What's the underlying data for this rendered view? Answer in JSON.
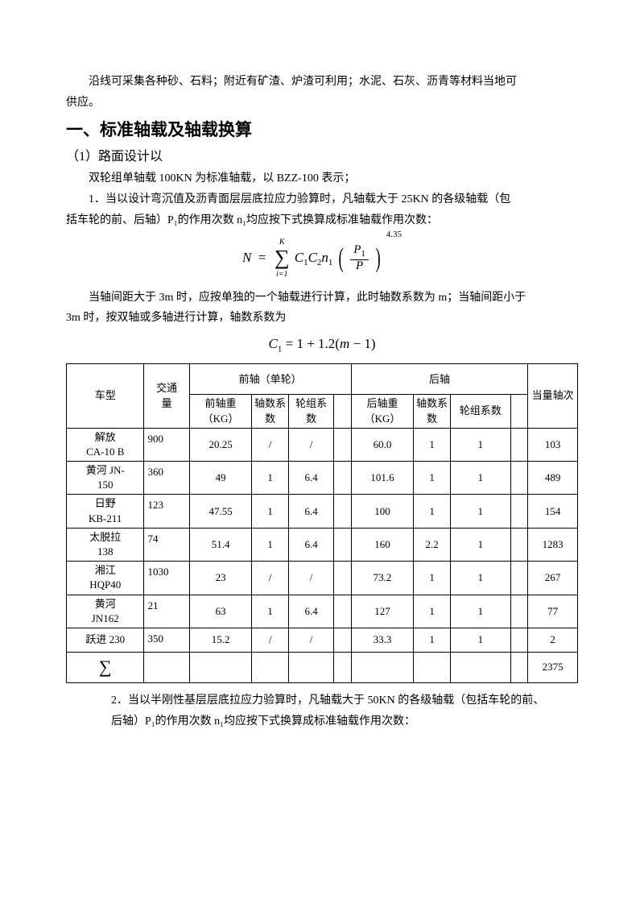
{
  "intro": {
    "line1": "沿线可采集各种砂、石料；附近有矿渣、炉渣可利用；水泥、石灰、沥青等材料当地可",
    "line2": "供应。"
  },
  "section": {
    "title": "一、标准轴载及轴载换算",
    "sub1": "（1）路面设计以",
    "p1": "双轮组单轴载 100KN 为标准轴载，以 BZZ-100 表示；",
    "p2a": "1．当以设计弯沉值及沥青面层层底拉应力验算时，凡轴载大于 25KN 的各级轴载（包",
    "p2b": "括车轮的前、后轴）P₁的作用次数 n₁均应按下式换算成标准轴载作用次数：",
    "p3a": "当轴间距大于 3m 时，应按单独的一个轴载进行计算，此时轴数系数为 m；当轴间距小于",
    "p3b": "3m 时，按双轴或多轴进行计算，轴数系数为"
  },
  "formula1": {
    "N": "N",
    "eq": "=",
    "sum": "∑",
    "i1": "i=1",
    "K": "K",
    "C1": "C",
    "s1": "1",
    "C2": "C",
    "s2": "2",
    "n1": "n",
    "sn": "1",
    "P1": "P",
    "sp1": "1",
    "P": "P",
    "exp": "4.35"
  },
  "formula2": {
    "C": "C",
    "s1": "1",
    "eq": "= 1 + 1.2(",
    "m": "m",
    "end": " − 1)"
  },
  "table": {
    "head": {
      "model": "车型",
      "traffic": "交通\n量",
      "front": "前轴（单轮）",
      "rear": "后轴",
      "fw": "前轴重\n（KG）",
      "fx": "轴数系数",
      "fg": "轮组系数",
      "rw": "后轴重\n（KG）",
      "rx": "轴数系数",
      "rg": "轮组系数",
      "eq": "当量轴次"
    },
    "rows": [
      {
        "m": "解放\nCA-10 B",
        "t": "900",
        "fw": "20.25",
        "fx": "/",
        "fg": "/",
        "rw": "60.0",
        "rx": "1",
        "rg": "1",
        "eq": "103"
      },
      {
        "m": "黄河 JN-\n150",
        "t": "360",
        "fw": "49",
        "fx": "1",
        "fg": "6.4",
        "rw": "101.6",
        "rx": "1",
        "rg": "1",
        "eq": "489"
      },
      {
        "m": "日野\nKB-211",
        "t": "123",
        "fw": "47.55",
        "fx": "1",
        "fg": "6.4",
        "rw": "100",
        "rx": "1",
        "rg": "1",
        "eq": "154"
      },
      {
        "m": "太脱拉\n138",
        "t": "74",
        "fw": "51.4",
        "fx": "1",
        "fg": "6.4",
        "rw": "160",
        "rx": "2.2",
        "rg": "1",
        "eq": "1283"
      },
      {
        "m": "湘江\nHQP40",
        "t": "1030",
        "fw": "23",
        "fx": "/",
        "fg": "/",
        "rw": "73.2",
        "rx": "1",
        "rg": "1",
        "eq": "267"
      },
      {
        "m": "黄河\nJN162",
        "t": "21",
        "fw": "63",
        "fx": "1",
        "fg": "6.4",
        "rw": "127",
        "rx": "1",
        "rg": "1",
        "eq": "77"
      },
      {
        "m": "跃进 230",
        "t": "350",
        "fw": "15.2",
        "fx": "/",
        "fg": "/",
        "rw": "33.3",
        "rx": "1",
        "rg": "1",
        "eq": "2"
      }
    ],
    "sum": {
      "sym": "∑",
      "total": "2375"
    }
  },
  "footer": {
    "l1": "2．当以半刚性基层层底拉应力验算时，凡轴载大于 50KN 的各级轴载（包括车轮的前、",
    "l2": "后轴）P₁的作用次数 n₁均应按下式换算成标准轴载作用次数："
  }
}
